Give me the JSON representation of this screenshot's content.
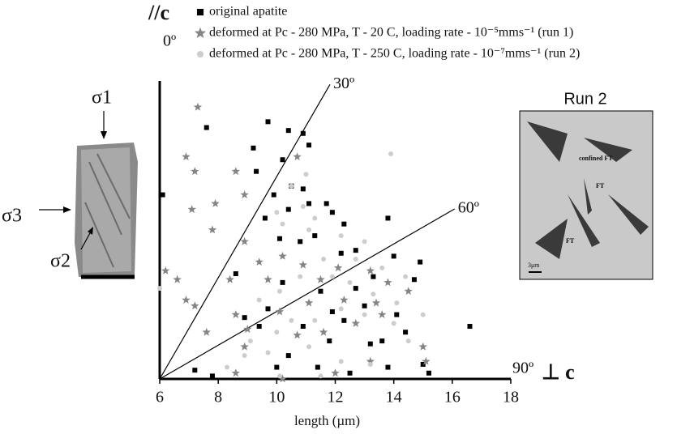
{
  "chart_data": {
    "type": "scatter",
    "x_label": "length (µm)",
    "y_label": "//c",
    "x_end_label": "⊥ c",
    "xlim": [
      6,
      18
    ],
    "xticks": [
      6,
      8,
      10,
      12,
      14,
      16,
      18
    ],
    "ylim": [
      0,
      10
    ],
    "angle_lines": [
      {
        "value": 0,
        "label": "0º"
      },
      {
        "value": 30,
        "label": "30º"
      },
      {
        "value": 60,
        "label": "60º"
      },
      {
        "value": 90,
        "label": "90º"
      }
    ],
    "series": [
      {
        "name": "original apatite",
        "color": "#000000",
        "marker": "square",
        "x": [
          6.1,
          7.6,
          9.7,
          10.4,
          10.9,
          9.2,
          9.3,
          11.1,
          10.2,
          9.9,
          10.5,
          10.9,
          11.1,
          11.7,
          9.6,
          10.4,
          11.9,
          12.3,
          13.8,
          8.6,
          10.1,
          10.8,
          11.3,
          12.2,
          12.7,
          14.0,
          14.9,
          14.7,
          13.3,
          12.7,
          11.5,
          10.2,
          9.7,
          8.9,
          11.9,
          13.0,
          14.1,
          16.6,
          13.6,
          11.8,
          10.4,
          10.0,
          11.4,
          12.5,
          13.8,
          15.0,
          15.2,
          7.2,
          7.8,
          9.4,
          10.9,
          12.3,
          13.2,
          14.4
        ],
        "y": [
          6.3,
          8.6,
          8.8,
          8.5,
          8.4,
          7.9,
          7.1,
          8.0,
          7.5,
          6.3,
          6.6,
          6.5,
          6.0,
          6.0,
          5.5,
          5.8,
          5.7,
          5.3,
          5.5,
          3.6,
          4.8,
          4.7,
          4.9,
          4.3,
          4.4,
          4.2,
          4.0,
          3.4,
          3.5,
          3.1,
          3.0,
          3.3,
          2.4,
          2.1,
          2.3,
          2.5,
          2.2,
          1.8,
          1.3,
          1.3,
          0.8,
          0.4,
          0.4,
          0.2,
          0.4,
          0.5,
          0.2,
          0.3,
          0.1,
          1.8,
          1.8,
          2.0,
          1.2,
          1.6
        ]
      },
      {
        "name": "deformed at Pc - 280 MPa, T - 20 C, loading rate - 10⁻⁵mms⁻¹ (run 1)",
        "color": "#858585",
        "marker": "star",
        "x": [
          7.3,
          6.9,
          7.2,
          6.2,
          6.6,
          7.1,
          7.9,
          8.6,
          8.9,
          7.8,
          8.4,
          8.9,
          8.6,
          9.4,
          10.2,
          9.7,
          10.9,
          11.5,
          12.1,
          13.2,
          13.8,
          14.5,
          13.6,
          12.7,
          11.6,
          10.7,
          9.0,
          8.9,
          8.6,
          10.2,
          12.0,
          13.2,
          15.0,
          15.1,
          13.4,
          12.3,
          11.1,
          10.1,
          7.6,
          10.7,
          6.9,
          7.2
        ],
        "y": [
          9.3,
          7.6,
          7.1,
          3.7,
          3.4,
          5.8,
          6.0,
          7.1,
          6.3,
          5.1,
          3.4,
          4.7,
          2.2,
          4.0,
          4.2,
          3.4,
          3.9,
          3.4,
          3.8,
          3.7,
          3.3,
          3.0,
          2.2,
          1.9,
          1.6,
          1.5,
          1.7,
          1.1,
          0.2,
          0.0,
          0.2,
          0.6,
          1.1,
          0.6,
          2.6,
          2.7,
          2.6,
          2.3,
          1.6,
          7.6,
          2.7,
          2.5
        ]
      },
      {
        "name": "deformed at Pc - 280 MPa, T - 250 C, loading rate - 10⁻⁷mms⁻¹ (run 2)",
        "color": "#cdcdcd",
        "marker": "circle",
        "x": [
          6.0,
          13.9,
          11.0,
          10.5,
          10.0,
          11.3,
          12.2,
          13.0,
          11.6,
          12.7,
          13.6,
          14.4,
          10.8,
          10.1,
          9.4,
          9.1,
          9.7,
          10.5,
          11.3,
          12.2,
          13.0,
          14.0,
          14.5,
          13.2,
          12.2,
          11.1,
          10.0,
          8.9,
          8.3,
          11.5,
          10.1,
          11.9,
          12.5,
          10.2,
          10.9,
          11.1,
          13.3,
          14.1,
          15.0
        ],
        "y": [
          3.1,
          7.7,
          7.0,
          6.6,
          5.7,
          5.5,
          4.9,
          4.7,
          4.1,
          4.1,
          3.8,
          3.5,
          3.5,
          3.0,
          2.7,
          1.3,
          0.9,
          2.0,
          2.0,
          2.4,
          2.2,
          1.9,
          1.3,
          0.5,
          0.6,
          1.1,
          1.6,
          0.8,
          0.4,
          0.1,
          0.1,
          3.5,
          3.3,
          5.3,
          5.9,
          5.1,
          2.9,
          2.6,
          2.2
        ]
      }
    ]
  },
  "sample_photo": {
    "sigma1": "σ1",
    "sigma2": "σ2",
    "sigma3": "σ3"
  },
  "micrograph": {
    "title": "Run 2",
    "labels": [
      "confined FT",
      "FT",
      "FT"
    ],
    "scale": "3μm"
  }
}
